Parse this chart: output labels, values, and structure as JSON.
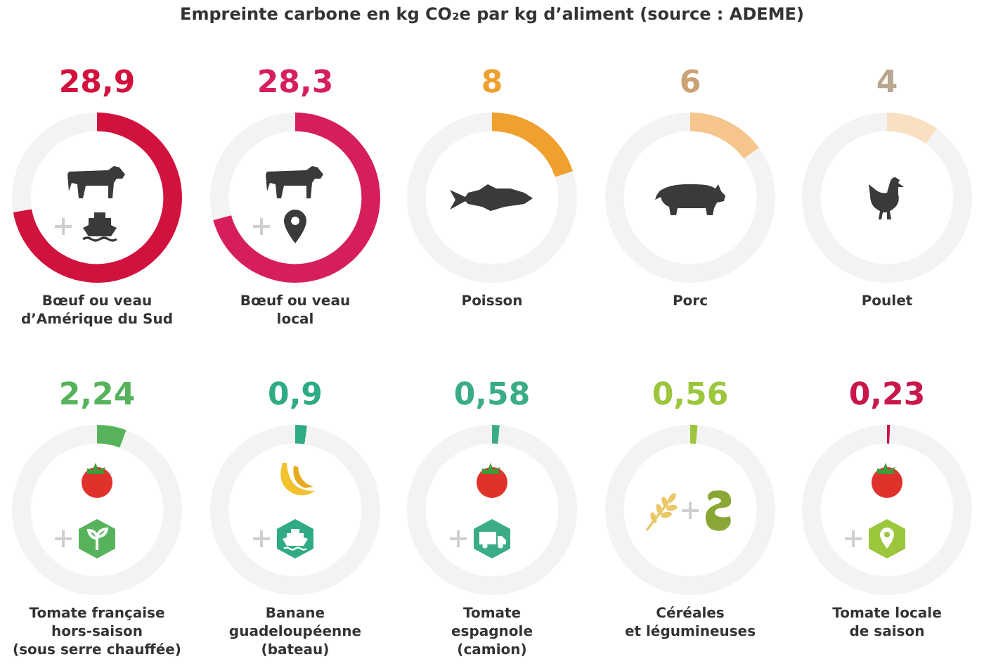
{
  "chart_data": [
    {
      "type": "donut",
      "xlabel": "Bœuf ou veau\nd’Amérique du Sud",
      "categories": [
        null,
        null
      ],
      "values": [
        28.9,
        11.1
      ],
      "colors": [
        "#d2123e",
        "#f3f3f3"
      ],
      "value_labels": [
        "28,9",
        null
      ]
    },
    {
      "type": "donut",
      "xlabel": "Bœuf ou veau\nlocal",
      "categories": [
        null,
        null
      ],
      "values": [
        28.3,
        11.7
      ],
      "colors": [
        "#d61f5a",
        "#f3f3f3"
      ],
      "value_labels": [
        "28,3",
        null
      ]
    },
    {
      "type": "donut",
      "title": "Empreinte carbone en kg CO₂e par kg d’aliment (source : ADEME)",
      "xlabel": "Poisson",
      "categories": [
        null,
        null
      ],
      "values": [
        8,
        32
      ],
      "colors": [
        "#efa02e",
        "#f3f3f3"
      ],
      "value_labels": [
        "8",
        null
      ]
    },
    {
      "type": "donut",
      "xlabel": "Porc",
      "categories": [
        null,
        null
      ],
      "values": [
        6,
        34
      ],
      "colors": [
        "#f5c58c",
        "#f3f3f3"
      ],
      "value_labels": [
        "6",
        null
      ]
    },
    {
      "type": "donut",
      "xlabel": "Poulet",
      "categories": [
        null,
        null
      ],
      "values": [
        4,
        36
      ],
      "colors": [
        "#f9e0c2",
        "#f3f3f3"
      ],
      "value_labels": [
        "4",
        null
      ]
    },
    {
      "type": "donut",
      "xlabel": "Tomate française\nhors-saison\n(sous serre chauffée)",
      "categories": [
        null,
        null
      ],
      "values": [
        2.24,
        37.76
      ],
      "colors": [
        "#56b35c",
        "#f3f3f3"
      ],
      "value_labels": [
        "2,24",
        null
      ]
    },
    {
      "type": "donut",
      "xlabel": "Banane\nguadeloupéenne\n(bateau)",
      "categories": [
        null,
        null
      ],
      "values": [
        0.9,
        39.1
      ],
      "colors": [
        "#2eab84",
        "#f3f3f3"
      ],
      "value_labels": [
        "0,9",
        null
      ]
    },
    {
      "type": "donut",
      "xlabel": "Tomate\nespagnole\n(camion)",
      "categories": [
        null,
        null
      ],
      "values": [
        0.58,
        39.42
      ],
      "colors": [
        "#3aad86",
        "#f3f3f3"
      ],
      "value_labels": [
        "0,58",
        null
      ]
    },
    {
      "type": "donut",
      "xlabel": "Céréales\net légumineuses",
      "categories": [
        null,
        null
      ],
      "values": [
        0.56,
        39.44
      ],
      "colors": [
        "#9cc63b",
        "#f3f3f3"
      ],
      "value_labels": [
        "0,56",
        null
      ]
    },
    {
      "type": "donut",
      "xlabel": "Tomate locale\nde saison",
      "categories": [
        null,
        null
      ],
      "values": [
        0.23,
        39.77
      ],
      "colors": [
        "#c8174a",
        "#f3f3f3"
      ],
      "value_labels": [
        "0,23",
        null
      ]
    }
  ]
}
